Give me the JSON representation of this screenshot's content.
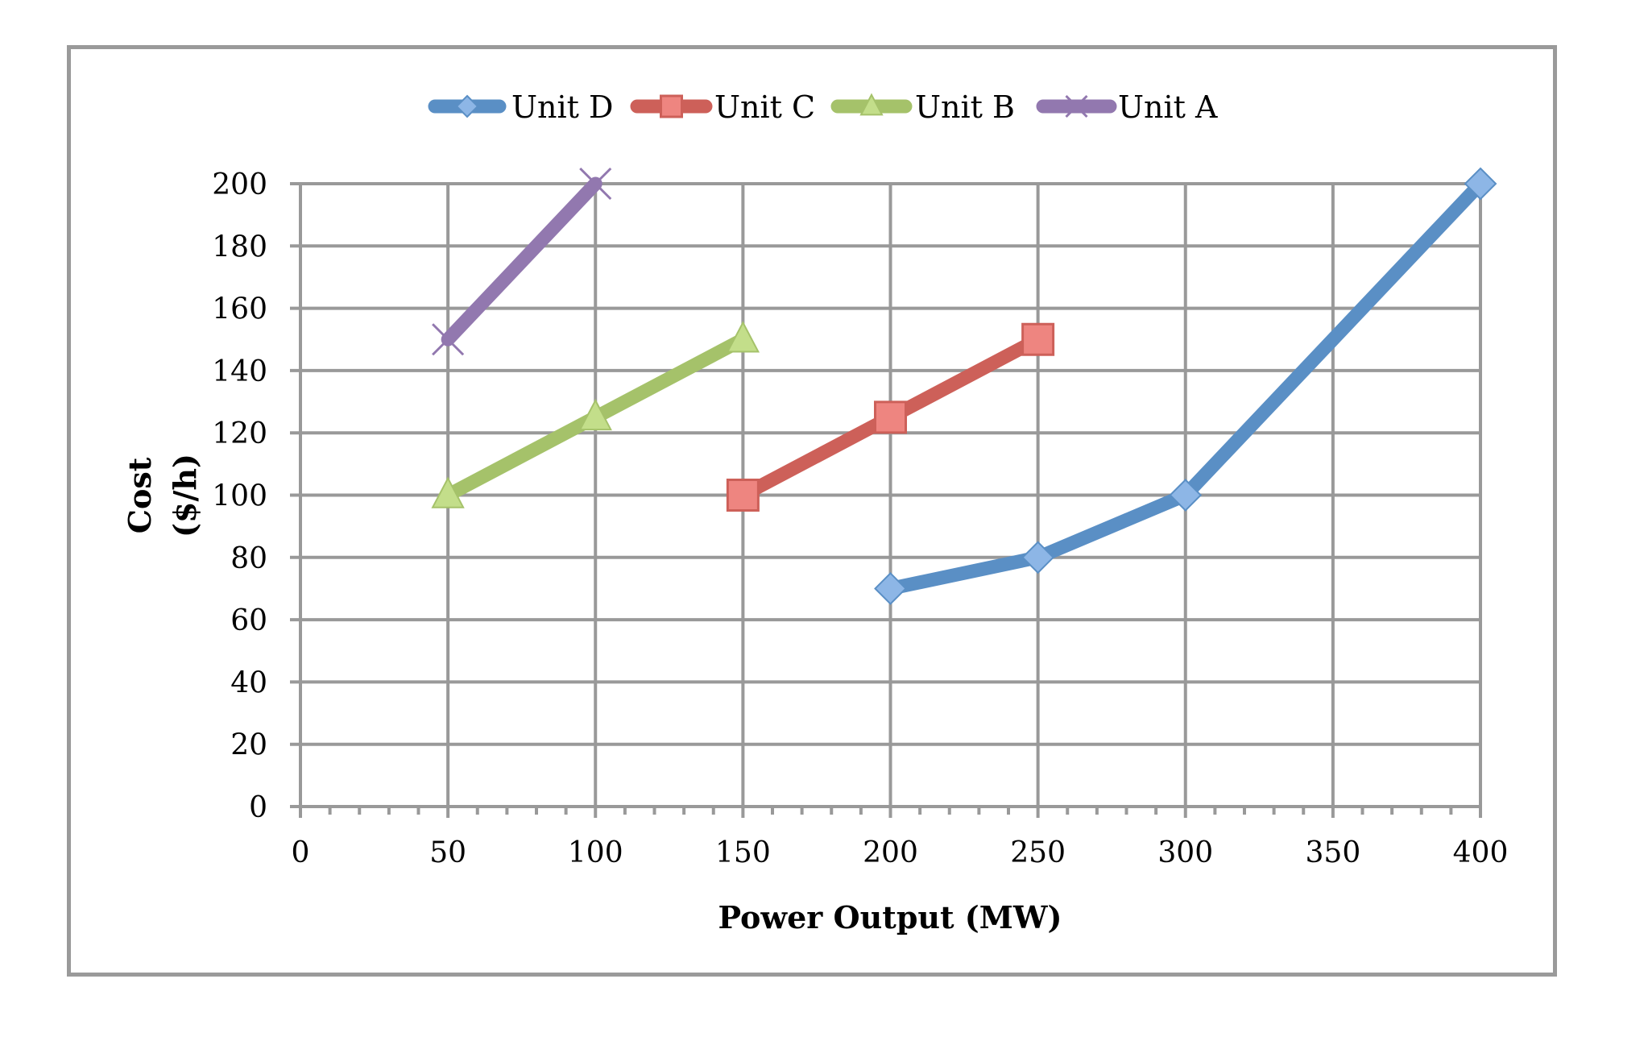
{
  "chart_data": {
    "type": "line",
    "title": "",
    "xlabel": "Power Output (MW)",
    "ylabel": "Cost ($/h)",
    "ylabel_lines": [
      "Cost",
      "($/h)"
    ],
    "xlim": [
      0,
      400
    ],
    "ylim": [
      0,
      200
    ],
    "x_ticks": [
      0,
      50,
      100,
      150,
      200,
      250,
      300,
      350,
      400
    ],
    "x_minor_step": 10,
    "y_ticks": [
      0,
      20,
      40,
      60,
      80,
      100,
      120,
      140,
      160,
      180,
      200
    ],
    "grid": true,
    "legend_position": "top",
    "series": [
      {
        "name": "Unit D",
        "color": "#5A8FC5",
        "marker": "diamond",
        "marker_fill": "#8DB6E6",
        "points": [
          [
            200,
            70
          ],
          [
            250,
            80
          ],
          [
            300,
            100
          ],
          [
            400,
            200
          ]
        ]
      },
      {
        "name": "Unit C",
        "color": "#CD6059",
        "marker": "square",
        "marker_fill": "#EE8580",
        "points": [
          [
            150,
            100
          ],
          [
            200,
            125
          ],
          [
            250,
            150
          ]
        ]
      },
      {
        "name": "Unit B",
        "color": "#A5C26A",
        "marker": "triangle",
        "marker_fill": "#C3DE8A",
        "points": [
          [
            50,
            100
          ],
          [
            100,
            125
          ],
          [
            150,
            150
          ]
        ]
      },
      {
        "name": "Unit A",
        "color": "#9278AF",
        "marker": "x",
        "marker_fill": "#9278AF",
        "points": [
          [
            50,
            150
          ],
          [
            100,
            200
          ]
        ]
      }
    ]
  },
  "colors": {
    "grid": "#999999",
    "frame": "#9a9a9a",
    "background": "#ffffff"
  }
}
